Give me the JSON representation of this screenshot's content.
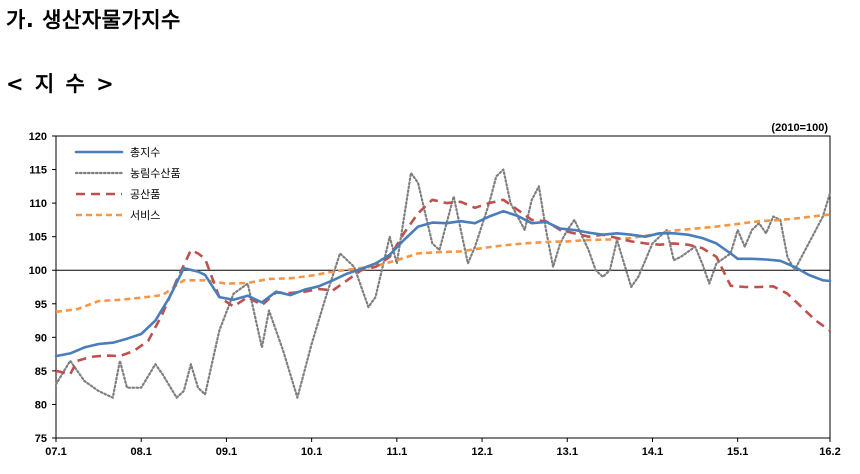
{
  "header": {
    "section_title": "가.  생산자물가지수",
    "subtitle": "< 지 수 >"
  },
  "chart_data": {
    "type": "line",
    "note": "(2010=100)",
    "ylim": [
      75,
      120
    ],
    "yticks": [
      75,
      80,
      85,
      90,
      95,
      100,
      105,
      110,
      115,
      120
    ],
    "reference_line": 100,
    "x_tick_labels": [
      "07.1",
      "08.1",
      "09.1",
      "10.1",
      "11.1",
      "12.1",
      "13.1",
      "14.1",
      "15.1",
      "16.2"
    ],
    "x_tick_months": [
      0,
      12,
      24,
      36,
      48,
      60,
      72,
      84,
      96,
      109
    ],
    "x_range_months": [
      0,
      109
    ],
    "x_start_label": "07.1",
    "legend_position": "top-left",
    "series": [
      {
        "name": "총지수",
        "color": "#4a7ebb",
        "style": "solid",
        "points": [
          [
            0,
            87.2
          ],
          [
            2,
            87.6
          ],
          [
            4,
            88.5
          ],
          [
            6,
            89.0
          ],
          [
            8,
            89.2
          ],
          [
            10,
            89.8
          ],
          [
            12,
            90.5
          ],
          [
            14,
            92.5
          ],
          [
            16,
            96.0
          ],
          [
            18,
            100.3
          ],
          [
            20,
            99.8
          ],
          [
            21,
            99.3
          ],
          [
            23,
            96.0
          ],
          [
            25,
            95.6
          ],
          [
            27,
            96.2
          ],
          [
            29,
            95.2
          ],
          [
            31,
            96.8
          ],
          [
            33,
            96.3
          ],
          [
            35,
            97.1
          ],
          [
            37,
            97.6
          ],
          [
            39,
            98.5
          ],
          [
            41,
            99.5
          ],
          [
            43,
            100.2
          ],
          [
            45,
            101.0
          ],
          [
            47,
            102.3
          ],
          [
            49,
            104.5
          ],
          [
            51,
            106.5
          ],
          [
            53,
            107.1
          ],
          [
            55,
            107.0
          ],
          [
            57,
            107.3
          ],
          [
            59,
            107.0
          ],
          [
            61,
            108.0
          ],
          [
            63,
            108.8
          ],
          [
            65,
            108.1
          ],
          [
            67,
            107.0
          ],
          [
            69,
            107.2
          ],
          [
            71,
            106.2
          ],
          [
            73,
            106.0
          ],
          [
            75,
            105.6
          ],
          [
            77,
            105.3
          ],
          [
            79,
            105.5
          ],
          [
            81,
            105.3
          ],
          [
            83,
            105.0
          ],
          [
            85,
            105.5
          ],
          [
            87,
            105.5
          ],
          [
            89,
            105.3
          ],
          [
            91,
            104.8
          ],
          [
            93,
            104.0
          ],
          [
            95,
            102.5
          ],
          [
            96,
            101.7
          ],
          [
            98,
            101.7
          ],
          [
            100,
            101.6
          ],
          [
            102,
            101.4
          ],
          [
            104,
            100.5
          ],
          [
            106,
            99.3
          ],
          [
            108,
            98.5
          ],
          [
            109,
            98.4
          ]
        ]
      },
      {
        "name": "농림수산품",
        "color": "#7f7f7f",
        "style": "dotted",
        "points": [
          [
            0,
            83.0
          ],
          [
            2,
            86.5
          ],
          [
            4,
            83.5
          ],
          [
            6,
            82.0
          ],
          [
            8,
            81.0
          ],
          [
            9,
            86.5
          ],
          [
            10,
            82.5
          ],
          [
            12,
            82.5
          ],
          [
            14,
            86.0
          ],
          [
            15,
            84.5
          ],
          [
            17,
            81.0
          ],
          [
            18,
            82.0
          ],
          [
            19,
            86.0
          ],
          [
            20,
            82.5
          ],
          [
            21,
            81.5
          ],
          [
            23,
            91.0
          ],
          [
            25,
            96.5
          ],
          [
            27,
            98.0
          ],
          [
            29,
            88.5
          ],
          [
            30,
            94.0
          ],
          [
            32,
            88.0
          ],
          [
            34,
            81.0
          ],
          [
            36,
            89.0
          ],
          [
            38,
            96.0
          ],
          [
            40,
            102.5
          ],
          [
            42,
            100.5
          ],
          [
            44,
            94.5
          ],
          [
            45,
            96.0
          ],
          [
            47,
            105.0
          ],
          [
            48,
            101.0
          ],
          [
            50,
            114.5
          ],
          [
            51,
            113.0
          ],
          [
            53,
            104.0
          ],
          [
            54,
            103.0
          ],
          [
            56,
            111.0
          ],
          [
            58,
            101.0
          ],
          [
            59,
            103.5
          ],
          [
            61,
            110.0
          ],
          [
            62,
            114.0
          ],
          [
            63,
            115.0
          ],
          [
            64,
            110.0
          ],
          [
            66,
            106.0
          ],
          [
            67,
            110.5
          ],
          [
            68,
            112.5
          ],
          [
            69,
            106.0
          ],
          [
            70,
            100.5
          ],
          [
            71,
            104.0
          ],
          [
            72,
            106.0
          ],
          [
            73,
            107.5
          ],
          [
            75,
            103.0
          ],
          [
            76,
            100.0
          ],
          [
            77,
            99.0
          ],
          [
            78,
            100.0
          ],
          [
            79,
            104.5
          ],
          [
            80,
            101.0
          ],
          [
            81,
            97.5
          ],
          [
            82,
            99.0
          ],
          [
            84,
            104.0
          ],
          [
            86,
            106.0
          ],
          [
            87,
            101.5
          ],
          [
            88,
            102.0
          ],
          [
            90,
            103.5
          ],
          [
            91,
            101.0
          ],
          [
            92,
            98.0
          ],
          [
            93,
            101.0
          ],
          [
            95,
            102.5
          ],
          [
            96,
            106.0
          ],
          [
            97,
            103.5
          ],
          [
            98,
            106.0
          ],
          [
            99,
            107.0
          ],
          [
            100,
            105.5
          ],
          [
            101,
            108.0
          ],
          [
            102,
            107.5
          ],
          [
            103,
            102.0
          ],
          [
            104,
            100.0
          ],
          [
            106,
            104.0
          ],
          [
            108,
            108.0
          ],
          [
            109,
            111.5
          ]
        ]
      },
      {
        "name": "공산품",
        "color": "#c0504d",
        "style": "dashed",
        "points": [
          [
            0,
            85.0
          ],
          [
            2,
            84.5
          ],
          [
            3,
            86.5
          ],
          [
            5,
            87.1
          ],
          [
            7,
            87.3
          ],
          [
            9,
            87.2
          ],
          [
            11,
            88.0
          ],
          [
            13,
            89.5
          ],
          [
            15,
            93.5
          ],
          [
            17,
            98.5
          ],
          [
            19,
            103.0
          ],
          [
            20,
            102.5
          ],
          [
            21,
            101.7
          ],
          [
            23,
            96.0
          ],
          [
            25,
            94.6
          ],
          [
            27,
            96.0
          ],
          [
            29,
            94.8
          ],
          [
            31,
            96.7
          ],
          [
            33,
            96.6
          ],
          [
            35,
            96.8
          ],
          [
            37,
            97.2
          ],
          [
            39,
            97.0
          ],
          [
            41,
            98.5
          ],
          [
            43,
            100.0
          ],
          [
            45,
            100.5
          ],
          [
            47,
            102.0
          ],
          [
            49,
            105.5
          ],
          [
            51,
            108.5
          ],
          [
            53,
            110.5
          ],
          [
            55,
            110.0
          ],
          [
            57,
            110.2
          ],
          [
            59,
            109.3
          ],
          [
            61,
            110.0
          ],
          [
            63,
            110.5
          ],
          [
            65,
            109.0
          ],
          [
            67,
            107.5
          ],
          [
            69,
            107.3
          ],
          [
            71,
            106.0
          ],
          [
            73,
            105.5
          ],
          [
            75,
            105.0
          ],
          [
            77,
            105.3
          ],
          [
            79,
            104.8
          ],
          [
            81,
            104.3
          ],
          [
            83,
            104.0
          ],
          [
            85,
            103.8
          ],
          [
            87,
            104.0
          ],
          [
            89,
            103.8
          ],
          [
            91,
            103.3
          ],
          [
            93,
            102.0
          ],
          [
            95,
            97.7
          ],
          [
            97,
            97.5
          ],
          [
            99,
            97.5
          ],
          [
            101,
            97.6
          ],
          [
            103,
            96.5
          ],
          [
            105,
            94.5
          ],
          [
            107,
            92.5
          ],
          [
            109,
            91.0
          ]
        ]
      },
      {
        "name": "서비스",
        "color": "#f79646",
        "style": "dashed",
        "points": [
          [
            0,
            93.8
          ],
          [
            3,
            94.2
          ],
          [
            6,
            95.4
          ],
          [
            9,
            95.6
          ],
          [
            12,
            95.9
          ],
          [
            15,
            96.3
          ],
          [
            18,
            98.5
          ],
          [
            21,
            98.5
          ],
          [
            24,
            98.0
          ],
          [
            27,
            98.1
          ],
          [
            30,
            98.7
          ],
          [
            33,
            98.8
          ],
          [
            36,
            99.2
          ],
          [
            39,
            99.8
          ],
          [
            42,
            100.2
          ],
          [
            45,
            100.6
          ],
          [
            48,
            101.5
          ],
          [
            51,
            102.5
          ],
          [
            54,
            102.7
          ],
          [
            57,
            102.8
          ],
          [
            60,
            103.3
          ],
          [
            63,
            103.7
          ],
          [
            66,
            104.0
          ],
          [
            69,
            104.2
          ],
          [
            72,
            104.3
          ],
          [
            75,
            104.5
          ],
          [
            78,
            104.6
          ],
          [
            81,
            104.8
          ],
          [
            84,
            105.3
          ],
          [
            87,
            105.9
          ],
          [
            90,
            106.2
          ],
          [
            93,
            106.5
          ],
          [
            96,
            106.9
          ],
          [
            99,
            107.3
          ],
          [
            102,
            107.5
          ],
          [
            105,
            107.8
          ],
          [
            108,
            108.2
          ],
          [
            109,
            108.3
          ]
        ]
      }
    ]
  }
}
